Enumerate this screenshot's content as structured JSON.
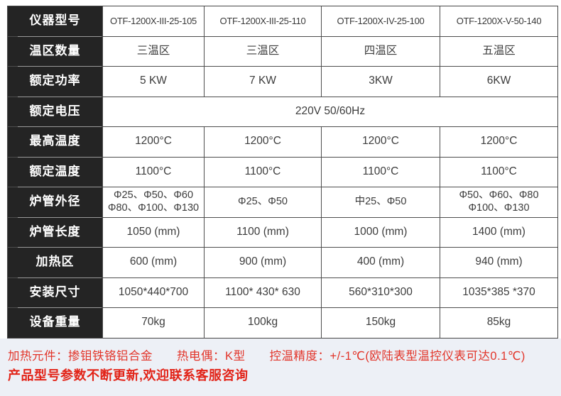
{
  "table": {
    "rows": [
      {
        "label": "仪器型号",
        "c0": "OTF-1200X-III-25-105",
        "c1": "OTF-1200X-III-25-110",
        "c2": "OTF-1200X-IV-25-100",
        "c3": "OTF-1200X-V-50-140"
      },
      {
        "label": "温区数量",
        "c0": "三温区",
        "c1": "三温区",
        "c2": "四温区",
        "c3": "五温区"
      },
      {
        "label": "额定功率",
        "c0": "5 KW",
        "c1": "7 KW",
        "c2": "3KW",
        "c3": "6KW"
      },
      {
        "label": "额定电压",
        "merged": "220V 50/60Hz"
      },
      {
        "label": "最高温度",
        "c0": "1200°C",
        "c1": "1200°C",
        "c2": "1200°C",
        "c3": "1200°C"
      },
      {
        "label": "额定温度",
        "c0": "1100°C",
        "c1": "1100°C",
        "c2": "1100°C",
        "c3": "1100°C"
      },
      {
        "label": "炉管外径",
        "c0": "Φ25、Φ50、Φ60\nΦ80、Φ100、Φ130",
        "c1": "Φ25、Φ50",
        "c2": "中25、Φ50",
        "c3": "Φ50、Φ60、Φ80\nΦ100、Φ130"
      },
      {
        "label": "炉管长度",
        "c0": "1050 (mm)",
        "c1": "1100 (mm)",
        "c2": "1000 (mm)",
        "c3": "1400 (mm)"
      },
      {
        "label": "加热区",
        "c0": "600 (mm)",
        "c1": "900 (mm)",
        "c2": "400 (mm)",
        "c3": "940 (mm)"
      },
      {
        "label": "安装尺寸",
        "c0": "1050*440*700",
        "c1": "1100* 430* 630",
        "c2": "560*310*300",
        "c3": "1035*385 *370"
      },
      {
        "label": "设备重量",
        "c0": "70kg",
        "c1": "100kg",
        "c2": "150kg",
        "c3": "85kg"
      }
    ]
  },
  "footer": {
    "line1": "加热元件：掺钼铁铬铝合金　　热电偶：K型　　控温精度：+/-1℃(欧陆表型温控仪表可达0.1℃)",
    "line2": "产品型号参数不断更新,欢迎联系客服咨询"
  },
  "colors": {
    "accent_red": "#e23429",
    "label_bg": "#242424",
    "grid_line": "#4d4d4d",
    "band_bg": "#edf0f6"
  }
}
